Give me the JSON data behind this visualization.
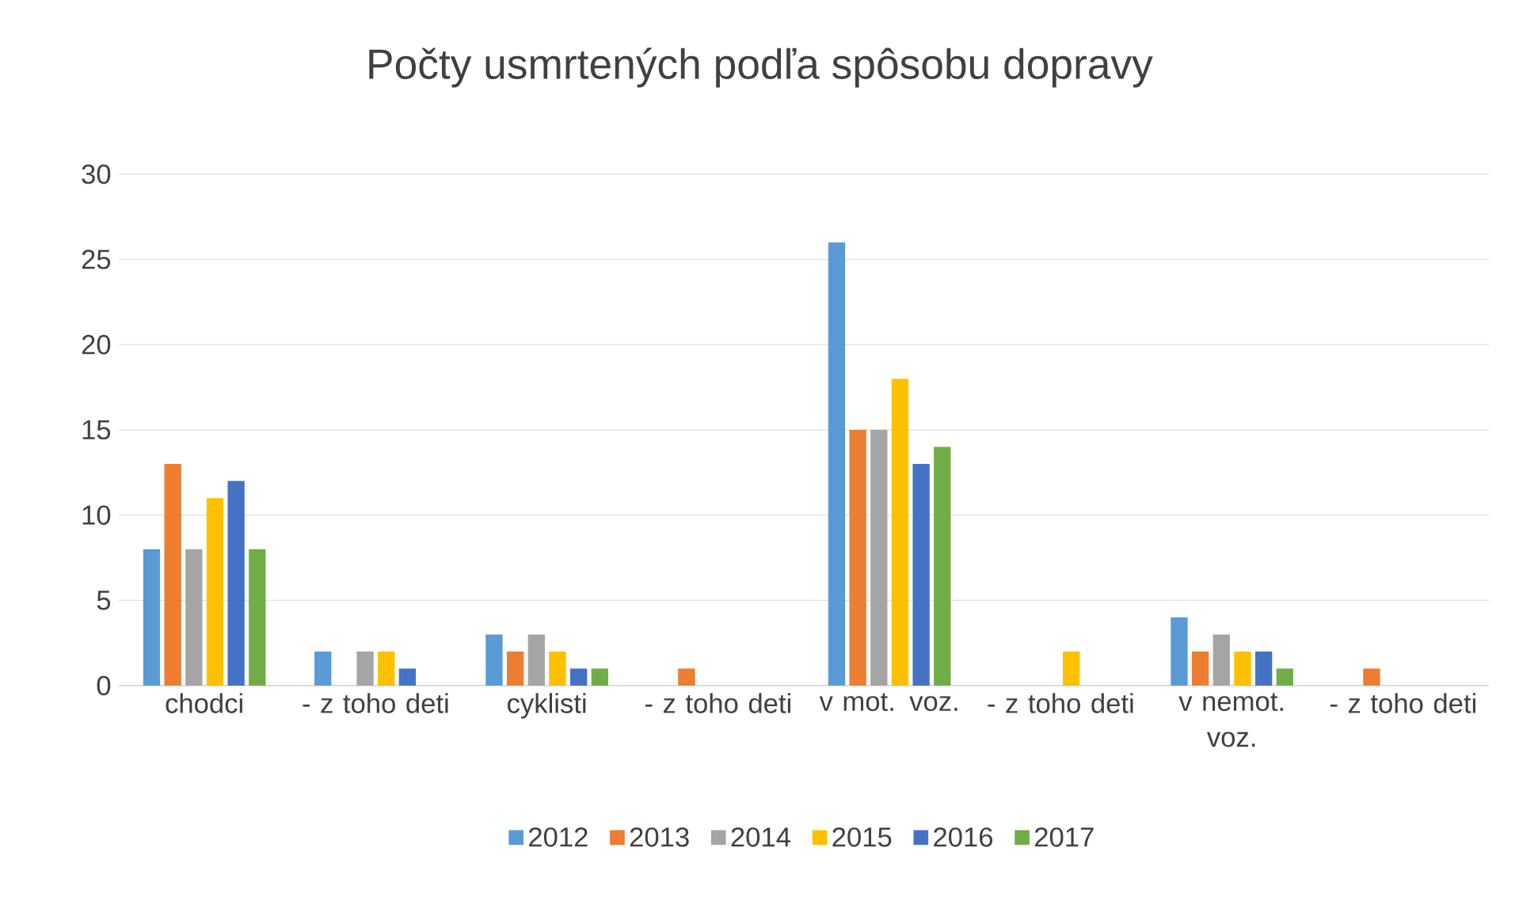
{
  "chart_data": {
    "type": "bar",
    "title": "Počty usmrtených podľa spôsobu dopravy",
    "categories": [
      "chodci",
      "- z toho deti",
      "cyklisti",
      "- z toho deti",
      "v mot. voz.",
      "- z toho deti",
      "v nemot. voz.",
      "- z toho deti"
    ],
    "series": [
      {
        "name": "2012",
        "color": "#5b9bd5",
        "values": [
          8,
          2,
          3,
          0,
          26,
          0,
          4,
          0
        ]
      },
      {
        "name": "2013",
        "color": "#ed7d31",
        "values": [
          13,
          0,
          2,
          1,
          15,
          0,
          2,
          1
        ]
      },
      {
        "name": "2014",
        "color": "#a5a5a5",
        "values": [
          8,
          2,
          3,
          0,
          15,
          0,
          3,
          0
        ]
      },
      {
        "name": "2015",
        "color": "#ffc000",
        "values": [
          11,
          2,
          2,
          0,
          18,
          2,
          2,
          0
        ]
      },
      {
        "name": "2016",
        "color": "#4472c4",
        "values": [
          12,
          1,
          1,
          0,
          13,
          0,
          2,
          0
        ]
      },
      {
        "name": "2017",
        "color": "#70ad47",
        "values": [
          8,
          0,
          1,
          0,
          14,
          0,
          1,
          0
        ]
      }
    ],
    "ylim": [
      0,
      30
    ],
    "yticks": [
      0,
      5,
      10,
      15,
      20,
      25,
      30
    ],
    "grid": "y",
    "legend": "bottom"
  }
}
